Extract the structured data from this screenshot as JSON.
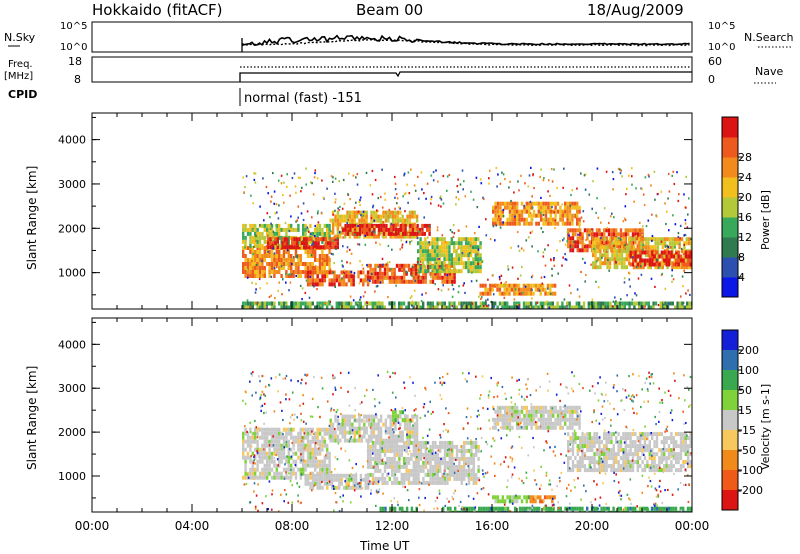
{
  "header": {
    "station": "Hokkaido (fitACF)",
    "beam": "Beam 00",
    "date": "18/Aug/2009"
  },
  "noise_panel": {
    "left_label": "N.Sky",
    "right_label": "N.Search",
    "tick_top": "10^5",
    "tick_bottom": "10^0"
  },
  "freq_panel": {
    "left_label_1": "Freq.",
    "left_label_2": "[MHz]",
    "left_ticks": [
      "18",
      "8"
    ],
    "right_label": "Nave",
    "right_ticks": [
      "60",
      "0"
    ]
  },
  "cpid": {
    "label": "CPID",
    "mode": "normal (fast) -151"
  },
  "colors": {
    "power": [
      "#0b17e6",
      "#2c4fb0",
      "#2f7a4f",
      "#38a85a",
      "#b3c93a",
      "#f2c01e",
      "#f28a1c",
      "#ee5a1d",
      "#dd1414"
    ],
    "velocity": [
      "#dd1414",
      "#ef5a18",
      "#f08a1a",
      "#f6c85e",
      "#c8c8c8",
      "#7fd23a",
      "#3aa84f",
      "#2f6fb0",
      "#1420d8"
    ]
  },
  "chart_data": [
    {
      "type": "heatmap",
      "name": "power",
      "ylabel": "Slant Range [km]",
      "y_ticks": [
        "1000",
        "2000",
        "3000",
        "4000"
      ],
      "ylim": [
        180,
        4600
      ],
      "xlim": [
        0,
        24
      ],
      "colorbar_label": "Power [dB]",
      "colorbar_ticks": [
        "4",
        "8",
        "12",
        "16",
        "20",
        "24",
        "28"
      ],
      "bands": [
        {
          "t0": 6.0,
          "t1": 9.5,
          "r0": 950,
          "r1": 1600,
          "level": 6
        },
        {
          "t0": 6.0,
          "t1": 9.5,
          "r0": 1600,
          "r1": 2100,
          "level": 4
        },
        {
          "t0": 7.0,
          "t1": 9.8,
          "r0": 1550,
          "r1": 1800,
          "level": 8
        },
        {
          "t0": 8.5,
          "t1": 11.0,
          "r0": 700,
          "r1": 1050,
          "level": 7
        },
        {
          "t0": 9.5,
          "t1": 13.0,
          "r0": 1800,
          "r1": 2400,
          "level": 5
        },
        {
          "t0": 10.0,
          "t1": 13.5,
          "r0": 1900,
          "r1": 2100,
          "level": 8
        },
        {
          "t0": 11.0,
          "t1": 14.5,
          "r0": 800,
          "r1": 1200,
          "level": 7
        },
        {
          "t0": 13.0,
          "t1": 15.5,
          "r0": 1000,
          "r1": 1800,
          "level": 4
        },
        {
          "t0": 15.5,
          "t1": 18.5,
          "r0": 500,
          "r1": 750,
          "level": 6
        },
        {
          "t0": 16.0,
          "t1": 19.5,
          "r0": 2100,
          "r1": 2600,
          "level": 6
        },
        {
          "t0": 19.0,
          "t1": 22.0,
          "r0": 1500,
          "r1": 2000,
          "level": 7
        },
        {
          "t0": 20.0,
          "t1": 24.0,
          "r0": 1100,
          "r1": 1800,
          "level": 5
        },
        {
          "t0": 21.5,
          "t1": 24.0,
          "r0": 1200,
          "r1": 1500,
          "level": 8
        },
        {
          "t0": 6.0,
          "t1": 24.0,
          "r0": 180,
          "r1": 350,
          "level": 3
        }
      ]
    },
    {
      "type": "heatmap",
      "name": "velocity",
      "ylabel": "Slant Range [km]",
      "y_ticks": [
        "1000",
        "2000",
        "3000",
        "4000"
      ],
      "ylim": [
        180,
        4600
      ],
      "xlim": [
        0,
        24
      ],
      "xlabel": "Time UT",
      "x_ticks": [
        "00:00",
        "04:00",
        "08:00",
        "12:00",
        "16:00",
        "20:00",
        "00:00"
      ],
      "colorbar_label": "Velocity [m s-1]",
      "colorbar_ticks": [
        "200",
        "100",
        "50",
        "15",
        "-15",
        "-50",
        "-100",
        "-200"
      ],
      "bands": [
        {
          "t0": 6.0,
          "t1": 9.5,
          "r0": 950,
          "r1": 2100,
          "level": 4
        },
        {
          "t0": 8.5,
          "t1": 11.0,
          "r0": 700,
          "r1": 1050,
          "level": 4
        },
        {
          "t0": 9.5,
          "t1": 13.0,
          "r0": 1800,
          "r1": 2400,
          "level": 4
        },
        {
          "t0": 11.0,
          "t1": 15.5,
          "r0": 800,
          "r1": 1800,
          "level": 4
        },
        {
          "t0": 16.0,
          "t1": 19.5,
          "r0": 2100,
          "r1": 2600,
          "level": 4
        },
        {
          "t0": 19.0,
          "t1": 24.0,
          "r0": 1100,
          "r1": 2000,
          "level": 4
        },
        {
          "t0": 16.0,
          "t1": 17.5,
          "r0": 380,
          "r1": 560,
          "level": 5
        },
        {
          "t0": 17.5,
          "t1": 18.5,
          "r0": 380,
          "r1": 560,
          "level": 2
        },
        {
          "t0": 11.5,
          "t1": 13.0,
          "r0": 180,
          "r1": 300,
          "level": 6
        },
        {
          "t0": 14.0,
          "t1": 24.0,
          "r0": 180,
          "r1": 300,
          "level": 6
        },
        {
          "t0": 12.0,
          "t1": 12.5,
          "r0": 2300,
          "r1": 2500,
          "level": 5
        }
      ]
    }
  ]
}
